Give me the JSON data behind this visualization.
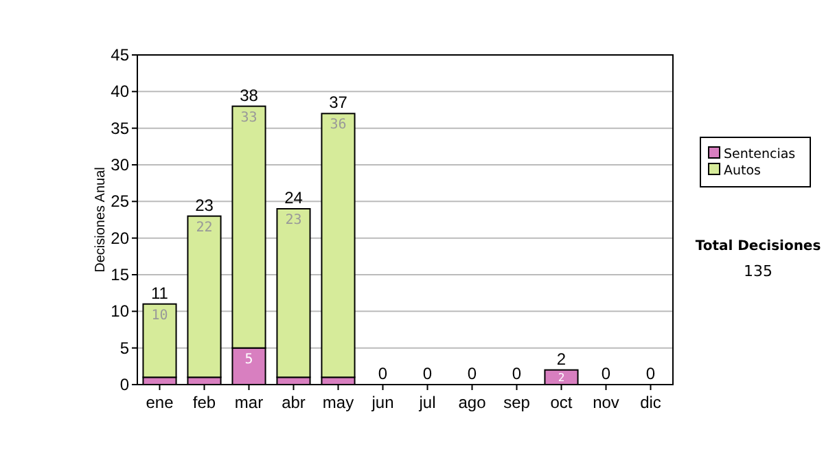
{
  "chart_data": {
    "type": "bar",
    "stacked": true,
    "ylabel": "Decisiones Anual",
    "categories": [
      "ene",
      "feb",
      "mar",
      "abr",
      "may",
      "jun",
      "jul",
      "ago",
      "sep",
      "oct",
      "nov",
      "dic"
    ],
    "series": [
      {
        "name": "Sentencias",
        "color": "#d87fc0",
        "values": [
          1,
          1,
          5,
          1,
          1,
          0,
          0,
          0,
          0,
          2,
          0,
          0
        ],
        "value_labels": [
          null,
          null,
          "5",
          null,
          null,
          null,
          null,
          null,
          null,
          "2",
          null,
          null
        ]
      },
      {
        "name": "Autos",
        "color": "#d6eb9a",
        "values": [
          10,
          22,
          33,
          23,
          36,
          0,
          0,
          0,
          0,
          0,
          0,
          0
        ],
        "value_labels": [
          "10",
          "22",
          "33",
          "23",
          "36",
          null,
          null,
          null,
          null,
          null,
          null,
          null
        ]
      }
    ],
    "totals": [
      "11",
      "23",
      "38",
      "24",
      "37",
      "0",
      "0",
      "0",
      "0",
      "2",
      "0",
      "0"
    ],
    "ylim": [
      0,
      45
    ],
    "yticks": [
      0,
      5,
      10,
      15,
      20,
      25,
      30,
      35,
      40,
      45
    ],
    "grid": "y",
    "legend": "right",
    "annotations": [
      "Total Decisiones",
      "135"
    ]
  }
}
